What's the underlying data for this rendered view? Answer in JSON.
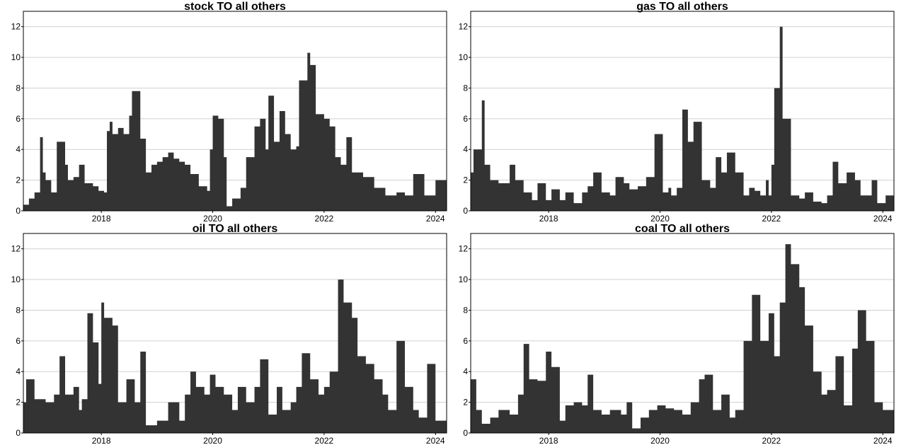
{
  "chart_data": [
    {
      "type": "area",
      "title": "stock TO all others",
      "xlabel": "",
      "ylabel": "",
      "xlim": [
        2016.6,
        2024.2
      ],
      "ylim": [
        0,
        13
      ],
      "x_ticks": [
        2018,
        2020,
        2022,
        2024
      ],
      "y_ticks": [
        0,
        2,
        4,
        6,
        8,
        10,
        12
      ],
      "grid": "horizontal",
      "color": "#333333",
      "x": [
        2016.6,
        2016.7,
        2016.8,
        2016.9,
        2016.95,
        2017.0,
        2017.1,
        2017.2,
        2017.35,
        2017.4,
        2017.5,
        2017.6,
        2017.7,
        2017.85,
        2017.95,
        2018.05,
        2018.1,
        2018.15,
        2018.2,
        2018.3,
        2018.4,
        2018.5,
        2018.55,
        2018.7,
        2018.8,
        2018.9,
        2019.0,
        2019.1,
        2019.2,
        2019.3,
        2019.4,
        2019.5,
        2019.6,
        2019.75,
        2019.9,
        2019.95,
        2020.0,
        2020.1,
        2020.2,
        2020.25,
        2020.35,
        2020.5,
        2020.6,
        2020.75,
        2020.85,
        2020.95,
        2021.0,
        2021.1,
        2021.2,
        2021.3,
        2021.4,
        2021.5,
        2021.55,
        2021.7,
        2021.75,
        2021.85,
        2022.0,
        2022.1,
        2022.2,
        2022.3,
        2022.4,
        2022.5,
        2022.7,
        2022.9,
        2023.1,
        2023.3,
        2023.45,
        2023.6,
        2023.8,
        2024.0,
        2024.2
      ],
      "values": [
        0.4,
        0.8,
        1.2,
        4.8,
        2.5,
        2.0,
        1.2,
        4.5,
        3.0,
        2.0,
        2.2,
        3.0,
        1.8,
        1.6,
        1.3,
        1.2,
        5.2,
        5.8,
        5.0,
        5.4,
        5.0,
        6.2,
        7.8,
        4.7,
        2.5,
        3.0,
        3.2,
        3.5,
        3.8,
        3.4,
        3.2,
        3.0,
        2.4,
        1.6,
        1.3,
        4.0,
        6.2,
        6.0,
        3.5,
        0.3,
        0.8,
        1.5,
        3.5,
        5.5,
        6.0,
        4.0,
        7.5,
        4.5,
        6.5,
        5.0,
        4.0,
        4.2,
        8.5,
        10.3,
        9.5,
        6.3,
        6.0,
        5.5,
        3.5,
        3.0,
        4.8,
        2.5,
        2.2,
        1.5,
        1.0,
        1.2,
        1.0,
        2.4,
        1.0,
        2.0,
        2.8
      ]
    },
    {
      "type": "area",
      "title": "gas TO all others",
      "xlabel": "",
      "ylabel": "",
      "xlim": [
        2016.6,
        2024.2
      ],
      "ylim": [
        0,
        13
      ],
      "x_ticks": [
        2018,
        2020,
        2022,
        2024
      ],
      "y_ticks": [
        0,
        2,
        4,
        6,
        8,
        10,
        12
      ],
      "grid": "horizontal",
      "color": "#333333",
      "x": [
        2016.6,
        2016.65,
        2016.8,
        2016.85,
        2016.95,
        2017.1,
        2017.3,
        2017.4,
        2017.55,
        2017.7,
        2017.8,
        2017.95,
        2018.05,
        2018.2,
        2018.3,
        2018.45,
        2018.6,
        2018.7,
        2018.8,
        2018.95,
        2019.1,
        2019.2,
        2019.35,
        2019.45,
        2019.6,
        2019.75,
        2019.9,
        2020.05,
        2020.15,
        2020.2,
        2020.3,
        2020.4,
        2020.5,
        2020.6,
        2020.75,
        2020.9,
        2021.0,
        2021.1,
        2021.2,
        2021.35,
        2021.5,
        2021.6,
        2021.7,
        2021.8,
        2021.9,
        2021.95,
        2022.0,
        2022.05,
        2022.15,
        2022.2,
        2022.35,
        2022.5,
        2022.6,
        2022.75,
        2022.9,
        2023.0,
        2023.1,
        2023.2,
        2023.35,
        2023.5,
        2023.6,
        2023.8,
        2023.9,
        2024.05,
        2024.2
      ],
      "values": [
        2.5,
        4.0,
        7.2,
        3.0,
        2.0,
        1.8,
        3.0,
        2.0,
        1.2,
        0.7,
        1.8,
        0.7,
        1.4,
        0.7,
        1.2,
        0.5,
        1.2,
        1.6,
        2.5,
        1.2,
        1.0,
        2.2,
        1.8,
        1.4,
        1.6,
        2.2,
        5.0,
        1.2,
        1.5,
        1.0,
        1.5,
        6.6,
        4.5,
        5.8,
        2.0,
        1.5,
        3.5,
        2.5,
        3.8,
        2.5,
        1.0,
        1.5,
        1.3,
        1.0,
        2.0,
        1.0,
        3.0,
        8.0,
        12.0,
        6.0,
        1.0,
        0.8,
        1.2,
        0.6,
        0.5,
        1.0,
        3.2,
        1.8,
        2.5,
        2.0,
        1.0,
        2.0,
        0.5,
        1.0,
        2.0
      ]
    },
    {
      "type": "area",
      "title": "oil TO all others",
      "xlabel": "",
      "ylabel": "",
      "xlim": [
        2016.6,
        2024.2
      ],
      "ylim": [
        0,
        13
      ],
      "x_ticks": [
        2018,
        2020,
        2022,
        2024
      ],
      "y_ticks": [
        0,
        2,
        4,
        6,
        8,
        10,
        12
      ],
      "grid": "horizontal",
      "color": "#333333",
      "x": [
        2016.6,
        2016.65,
        2016.8,
        2017.0,
        2017.15,
        2017.25,
        2017.35,
        2017.5,
        2017.6,
        2017.65,
        2017.75,
        2017.85,
        2017.95,
        2018.0,
        2018.05,
        2018.2,
        2018.3,
        2018.45,
        2018.6,
        2018.7,
        2018.8,
        2019.0,
        2019.2,
        2019.4,
        2019.5,
        2019.6,
        2019.7,
        2019.85,
        2019.95,
        2020.05,
        2020.2,
        2020.35,
        2020.45,
        2020.6,
        2020.75,
        2020.85,
        2021.0,
        2021.15,
        2021.25,
        2021.4,
        2021.5,
        2021.6,
        2021.75,
        2021.9,
        2022.0,
        2022.1,
        2022.25,
        2022.35,
        2022.5,
        2022.6,
        2022.75,
        2022.9,
        2023.05,
        2023.15,
        2023.3,
        2023.45,
        2023.6,
        2023.7,
        2023.85,
        2024.0,
        2024.2
      ],
      "values": [
        2.0,
        3.5,
        2.2,
        2.0,
        2.5,
        5.0,
        2.5,
        3.0,
        1.5,
        2.2,
        7.8,
        5.9,
        3.2,
        8.5,
        7.5,
        7.0,
        2.0,
        3.5,
        2.0,
        5.3,
        0.5,
        0.8,
        2.0,
        0.8,
        2.5,
        4.0,
        3.0,
        2.5,
        3.8,
        3.0,
        2.5,
        1.5,
        3.0,
        2.0,
        3.0,
        4.8,
        1.2,
        3.0,
        1.5,
        2.0,
        3.0,
        5.2,
        3.5,
        2.5,
        3.0,
        4.0,
        10.0,
        8.5,
        7.5,
        5.0,
        4.5,
        3.5,
        2.5,
        1.5,
        6.0,
        3.0,
        1.5,
        1.0,
        4.5,
        0.8,
        1.8
      ]
    },
    {
      "type": "area",
      "title": "coal TO all others",
      "xlabel": "",
      "ylabel": "",
      "xlim": [
        2016.6,
        2024.2
      ],
      "ylim": [
        0,
        13
      ],
      "x_ticks": [
        2018,
        2020,
        2022,
        2024
      ],
      "y_ticks": [
        0,
        2,
        4,
        6,
        8,
        10,
        12
      ],
      "grid": "horizontal",
      "color": "#333333",
      "x": [
        2016.6,
        2016.7,
        2016.8,
        2016.95,
        2017.1,
        2017.3,
        2017.45,
        2017.55,
        2017.65,
        2017.8,
        2017.95,
        2018.05,
        2018.2,
        2018.3,
        2018.45,
        2018.6,
        2018.7,
        2018.8,
        2018.95,
        2019.1,
        2019.3,
        2019.4,
        2019.5,
        2019.65,
        2019.8,
        2019.95,
        2020.1,
        2020.25,
        2020.4,
        2020.55,
        2020.7,
        2020.8,
        2020.95,
        2021.1,
        2021.25,
        2021.35,
        2021.5,
        2021.65,
        2021.8,
        2021.95,
        2022.05,
        2022.15,
        2022.25,
        2022.35,
        2022.5,
        2022.6,
        2022.75,
        2022.9,
        2023.0,
        2023.15,
        2023.3,
        2023.45,
        2023.55,
        2023.7,
        2023.85,
        2024.0,
        2024.2
      ],
      "values": [
        3.5,
        1.5,
        0.6,
        1.0,
        1.5,
        1.2,
        2.5,
        5.8,
        3.5,
        3.4,
        5.3,
        4.3,
        0.8,
        1.8,
        2.0,
        1.8,
        3.8,
        1.5,
        1.2,
        1.5,
        1.2,
        2.0,
        0.3,
        1.0,
        1.5,
        1.8,
        1.6,
        1.5,
        1.2,
        2.0,
        3.5,
        3.8,
        1.5,
        2.5,
        1.0,
        1.5,
        6.0,
        9.0,
        6.0,
        7.8,
        5.0,
        8.5,
        12.3,
        11.0,
        9.5,
        7.0,
        4.0,
        2.5,
        2.8,
        5.0,
        1.8,
        5.5,
        8.0,
        6.0,
        2.0,
        1.5,
        0.8
      ]
    }
  ]
}
